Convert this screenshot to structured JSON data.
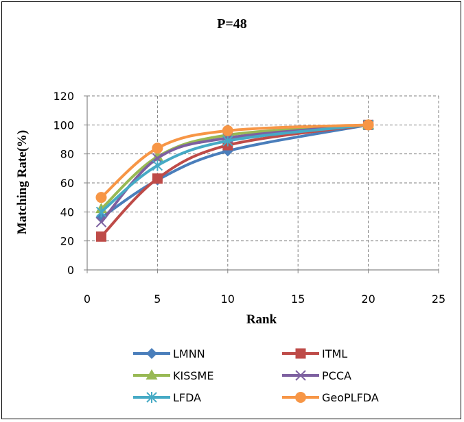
{
  "chart_data": {
    "type": "line",
    "title": "P=48",
    "xlabel": "Rank",
    "ylabel": "Matching Rate(%)",
    "xlim": [
      0,
      25
    ],
    "ylim": [
      0,
      120
    ],
    "xticks": [
      0,
      5,
      10,
      15,
      20,
      25
    ],
    "yticks": [
      0,
      20,
      40,
      60,
      80,
      100,
      120
    ],
    "grid": true,
    "smooth": true,
    "legend_position": "bottom",
    "x": [
      1,
      5,
      10,
      20
    ],
    "series": [
      {
        "name": "LMNN",
        "color": "#4A7EBB",
        "marker": "diamond",
        "values": [
          36,
          62,
          82,
          100
        ]
      },
      {
        "name": "ITML",
        "color": "#BE4B48",
        "marker": "square",
        "values": [
          23,
          63,
          86,
          100
        ]
      },
      {
        "name": "KISSME",
        "color": "#98B954",
        "marker": "triangle",
        "values": [
          42,
          78,
          93,
          100
        ]
      },
      {
        "name": "PCCA",
        "color": "#7D60A0",
        "marker": "x",
        "values": [
          33,
          77,
          91,
          100
        ]
      },
      {
        "name": "LFDA",
        "color": "#46AAC5",
        "marker": "asterisk",
        "values": [
          40,
          72,
          89,
          100
        ]
      },
      {
        "name": "GeoPLFDA",
        "color": "#F79646",
        "marker": "circle",
        "values": [
          50,
          84,
          96,
          100
        ]
      }
    ]
  }
}
